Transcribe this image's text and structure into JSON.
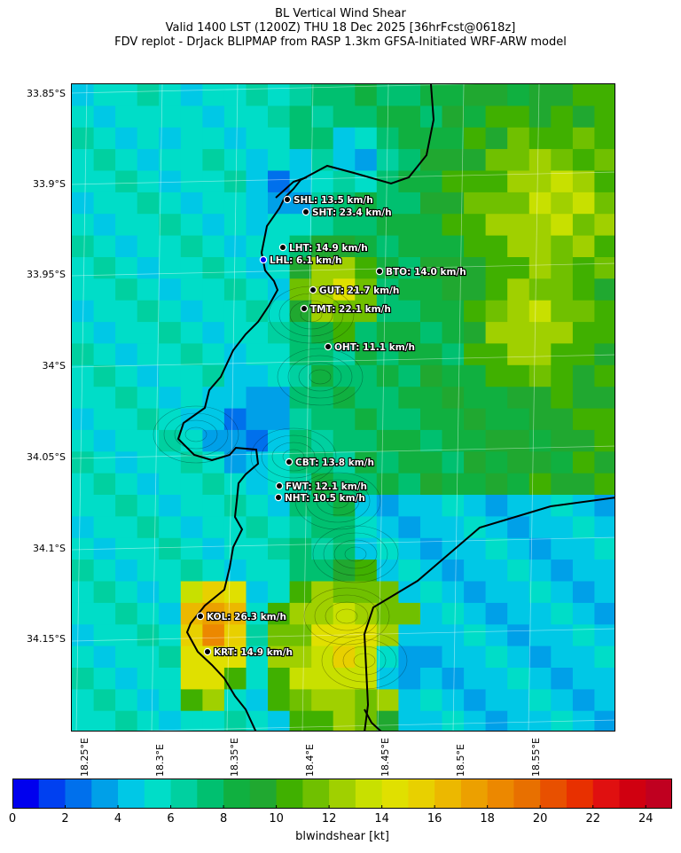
{
  "header": {
    "title_line1": "BL Vertical Wind Shear",
    "title_line2": "Valid 1400 LST (1200Z) THU 18 Dec 2025 [36hrFcst@0618z]",
    "title_line3": "FDV replot - DrJack BLIPMAP from RASP 1.3km GFSA-Initiated WRF-ARW model"
  },
  "map": {
    "lat_labels": [
      "33.85°S",
      "33.9°S",
      "33.95°S",
      "34°S",
      "34.05°S",
      "34.1°S",
      "34.15°S"
    ],
    "lon_labels": [
      "18.25°E",
      "18.3°E",
      "18.35°E",
      "18.4°E",
      "18.45°E",
      "18.5°E",
      "18.55°E"
    ],
    "stations": [
      {
        "code": "SHL",
        "label": "SHL: 13.5 km/h",
        "value_kmh": 13.5
      },
      {
        "code": "SHT",
        "label": "SHT: 23.4 km/h",
        "value_kmh": 23.4
      },
      {
        "code": "LHT",
        "label": "LHT: 14.9 km/h",
        "value_kmh": 14.9
      },
      {
        "code": "LHL",
        "label": "LHL: 6.1 km/h",
        "value_kmh": 6.1
      },
      {
        "code": "BTO",
        "label": "BTO: 14.0 km/h",
        "value_kmh": 14.0
      },
      {
        "code": "GUT",
        "label": "GUT: 21.7 km/h",
        "value_kmh": 21.7
      },
      {
        "code": "TMT",
        "label": "TMT: 22.1 km/h",
        "value_kmh": 22.1
      },
      {
        "code": "OHT",
        "label": "OHT: 11.1 km/h",
        "value_kmh": 11.1
      },
      {
        "code": "CBT",
        "label": "CBT: 13.8 km/h",
        "value_kmh": 13.8
      },
      {
        "code": "FWT",
        "label": "FWT: 12.1 km/h",
        "value_kmh": 12.1
      },
      {
        "code": "NHT",
        "label": "NHT: 10.5 km/h",
        "value_kmh": 10.5
      },
      {
        "code": "KOL",
        "label": "KOL: 26.3 km/h",
        "value_kmh": 26.3
      },
      {
        "code": "KRT",
        "label": "KRT: 14.9 km/h",
        "value_kmh": 14.9
      }
    ]
  },
  "colorbar": {
    "label": "blwindshear [kt]",
    "ticks": [
      "0",
      "2",
      "4",
      "6",
      "8",
      "10",
      "12",
      "14",
      "16",
      "18",
      "20",
      "22",
      "24"
    ],
    "range": [
      0,
      25
    ],
    "colors": [
      "#0000ee",
      "#0040f0",
      "#0070ec",
      "#00a0e8",
      "#00c8e6",
      "#00ddc8",
      "#00d0a0",
      "#00c070",
      "#10b040",
      "#20a830",
      "#40b000",
      "#70c000",
      "#a0d000",
      "#c8e000",
      "#e0e000",
      "#e8d000",
      "#ecb800",
      "#eca000",
      "#ec8800",
      "#e87000",
      "#e85000",
      "#e83000",
      "#e01010",
      "#d00010",
      "#c00020"
    ]
  }
}
